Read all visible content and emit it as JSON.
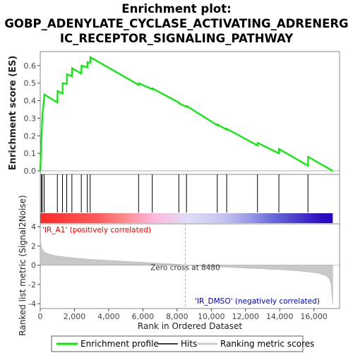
{
  "chart_data": {
    "type": "line",
    "title_lines": [
      "Enrichment plot:",
      "GOBP_ADENYLATE_CYCLASE_ACTIVATING_ADRENERG",
      "IC_RECEPTOR_SIGNALING_PATHWAY"
    ],
    "xlabel": "Rank in Ordered Dataset",
    "xlim": [
      0,
      17500
    ],
    "x_ticks": [
      0,
      2000,
      4000,
      6000,
      8000,
      10000,
      12000,
      14000,
      16000
    ],
    "x_tick_labels": [
      "0",
      "2,000",
      "4,000",
      "6,000",
      "8,000",
      "10,000",
      "12,000",
      "14,000",
      "16,000"
    ],
    "es_panel": {
      "ylabel": "Enrichment score (ES)",
      "ylim": [
        -0.02,
        0.68
      ],
      "y_ticks": [
        0.0,
        0.1,
        0.2,
        0.3,
        0.4,
        0.5,
        0.6
      ],
      "y_tick_labels": [
        "0.0",
        "0.1",
        "0.2",
        "0.3",
        "0.4",
        "0.5",
        "0.6"
      ],
      "series": [
        {
          "name": "Enrichment profile",
          "color": "#00ee00",
          "x": [
            0,
            60,
            70,
            120,
            130,
            230,
            240,
            1000,
            1010,
            1300,
            1310,
            1550,
            1560,
            1850,
            1860,
            2400,
            2410,
            2750,
            2760,
            2920,
            2930,
            5750,
            5760,
            6550,
            6560,
            8100,
            8110,
            8550,
            8560,
            10350,
            10360,
            10900,
            10910,
            12700,
            12710,
            13950,
            13960,
            15650,
            15660,
            17100
          ],
          "y": [
            0.0,
            0.17,
            0.18,
            0.31,
            0.32,
            0.42,
            0.435,
            0.39,
            0.455,
            0.44,
            0.5,
            0.495,
            0.55,
            0.54,
            0.585,
            0.555,
            0.6,
            0.59,
            0.62,
            0.615,
            0.648,
            0.49,
            0.5,
            0.465,
            0.47,
            0.39,
            0.385,
            0.365,
            0.37,
            0.26,
            0.265,
            0.235,
            0.24,
            0.145,
            0.16,
            0.1,
            0.125,
            0.03,
            0.08,
            0.0
          ]
        }
      ]
    },
    "hits": {
      "name": "Hits",
      "positions": [
        60,
        120,
        230,
        1000,
        1300,
        1550,
        1850,
        2400,
        2750,
        2920,
        5750,
        6550,
        8100,
        8550,
        10350,
        10900,
        12700,
        13950,
        15650
      ]
    },
    "metric_panel": {
      "name": "Ranking metric scores",
      "ylabel": "Ranked list metric (Signal2Noise)",
      "ylim": [
        -4.5,
        4.3
      ],
      "y_ticks": [
        4,
        2,
        0,
        -2,
        -4
      ],
      "y_tick_labels": [
        "4",
        "2",
        "0",
        "-2",
        "-4"
      ],
      "curve_x": [
        0,
        100,
        300,
        600,
        1000,
        2000,
        3000,
        4000,
        5000,
        6000,
        7000,
        8000,
        8480,
        9000,
        10000,
        11000,
        12000,
        13000,
        14000,
        15000,
        15800,
        16300,
        16700,
        16900,
        17000,
        17100
      ],
      "curve_y": [
        2.6,
        1.7,
        1.3,
        1.1,
        0.95,
        0.75,
        0.6,
        0.5,
        0.4,
        0.3,
        0.2,
        0.1,
        0.0,
        -0.07,
        -0.15,
        -0.22,
        -0.3,
        -0.38,
        -0.46,
        -0.58,
        -0.72,
        -0.85,
        -1.1,
        -1.4,
        -2.0,
        -4.1
      ],
      "zero_cross_label": "Zero cross at 8480",
      "zero_cross_rank": 8480,
      "pos_label": "'IR_A1' (positively correlated)",
      "neg_label": "'IR_DMSO' (negatively correlated)",
      "pos_color": "#ff0000",
      "neg_color": "#0000cc"
    },
    "gradient_bar": {
      "stops": [
        {
          "x": 0,
          "color": "#ff2a2a"
        },
        {
          "x": 3300,
          "color": "#ff5a5a"
        },
        {
          "x": 4900,
          "color": "#ff8a8a"
        },
        {
          "x": 6600,
          "color": "#ffb6dd"
        },
        {
          "x": 8600,
          "color": "#ddddf6"
        },
        {
          "x": 10600,
          "color": "#c6c6f2"
        },
        {
          "x": 12200,
          "color": "#9a9ae8"
        },
        {
          "x": 13600,
          "color": "#6a6ad8"
        },
        {
          "x": 16600,
          "color": "#2a0ac0"
        }
      ]
    },
    "legend": {
      "placement": "bottom",
      "items": [
        {
          "label": "Enrichment profile",
          "color": "#00ee00"
        },
        {
          "label": "Hits",
          "color": "#000000"
        },
        {
          "label": "Ranking metric scores",
          "color": "#cccccc"
        }
      ]
    }
  }
}
